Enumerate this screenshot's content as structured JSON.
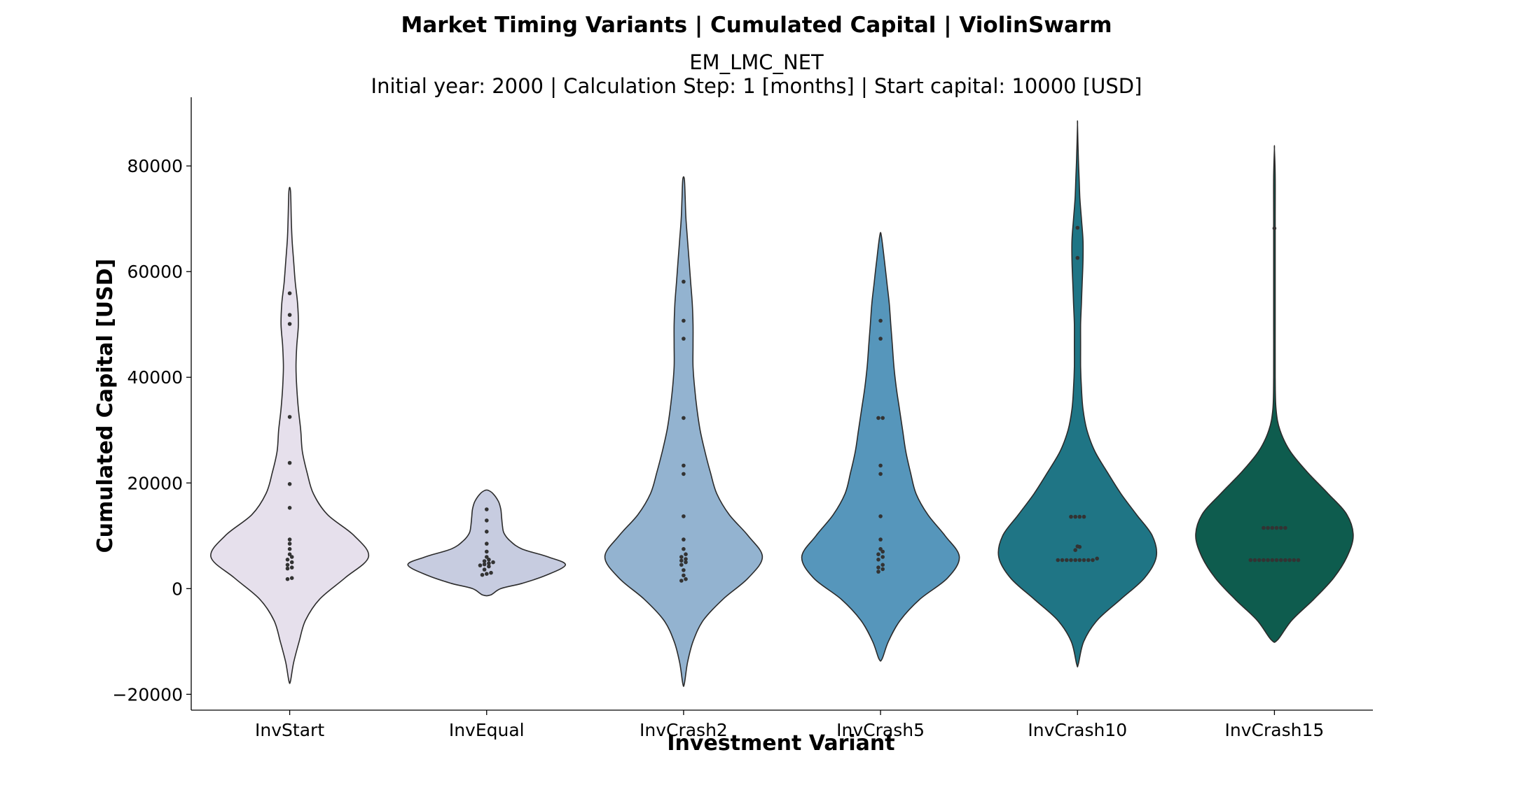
{
  "header": {
    "title": "Market Timing Variants | Cumulated Capital | ViolinSwarm",
    "subtitle_line1": "EM_LMC_NET",
    "subtitle_line2": "Initial year: 2000 | Calculation Step: 1 [months] | Start capital: 10000 [USD]"
  },
  "chart_data": {
    "type": "violin",
    "xlabel": "Investment Variant",
    "ylabel": "Cumulated Capital [USD]",
    "ylim": [
      -23000,
      93000
    ],
    "yticks": [
      -20000,
      0,
      20000,
      40000,
      60000,
      80000
    ],
    "ytick_labels": [
      "−20000",
      "0",
      "20000",
      "40000",
      "60000",
      "80000"
    ],
    "grid": false,
    "categories": [
      "InvStart",
      "InvEqual",
      "InvCrash2",
      "InvCrash5",
      "InvCrash10",
      "InvCrash15"
    ],
    "colors": [
      "#e6e0ec",
      "#c7cce0",
      "#93b3d0",
      "#5696bb",
      "#1f7585",
      "#0e5c4e"
    ],
    "series": [
      {
        "category": "InvStart",
        "points": [
          1800,
          2000,
          3800,
          4000,
          4500,
          5000,
          5500,
          6000,
          6500,
          7500,
          8500,
          9300,
          15300,
          19800,
          23800,
          32500,
          50100,
          51800,
          55900
        ],
        "density": [
          [
            -17500,
            0.01
          ],
          [
            -14000,
            0.05
          ],
          [
            -10000,
            0.12
          ],
          [
            -6000,
            0.2
          ],
          [
            -2000,
            0.38
          ],
          [
            2000,
            0.7
          ],
          [
            6000,
            1.0
          ],
          [
            10000,
            0.82
          ],
          [
            14000,
            0.48
          ],
          [
            18000,
            0.3
          ],
          [
            22000,
            0.22
          ],
          [
            26000,
            0.16
          ],
          [
            30000,
            0.14
          ],
          [
            34000,
            0.11
          ],
          [
            38000,
            0.09
          ],
          [
            42000,
            0.08
          ],
          [
            46000,
            0.09
          ],
          [
            50000,
            0.11
          ],
          [
            54000,
            0.1
          ],
          [
            58000,
            0.07
          ],
          [
            62000,
            0.05
          ],
          [
            66000,
            0.03
          ],
          [
            70000,
            0.02
          ],
          [
            75300,
            0.01
          ]
        ]
      },
      {
        "category": "InvEqual",
        "points": [
          2600,
          2800,
          3000,
          3600,
          4200,
          4400,
          4600,
          4800,
          5000,
          5200,
          5500,
          6000,
          7000,
          8500,
          10800,
          12900,
          15000
        ],
        "density": [
          [
            -1200,
            0.05
          ],
          [
            0,
            0.18
          ],
          [
            1000,
            0.45
          ],
          [
            2500,
            0.75
          ],
          [
            4500,
            1.0
          ],
          [
            6000,
            0.78
          ],
          [
            7500,
            0.45
          ],
          [
            9000,
            0.3
          ],
          [
            10500,
            0.22
          ],
          [
            12000,
            0.2
          ],
          [
            13500,
            0.19
          ],
          [
            15000,
            0.18
          ],
          [
            16500,
            0.15
          ],
          [
            18000,
            0.08
          ],
          [
            18600,
            0.02
          ]
        ]
      },
      {
        "category": "InvCrash2",
        "points": [
          1500,
          1800,
          2500,
          3500,
          4500,
          5000,
          5300,
          5600,
          6000,
          6500,
          7500,
          9300,
          13700,
          21700,
          23300,
          32300,
          47300,
          50700,
          58100
        ],
        "density": [
          [
            -18000,
            0.01
          ],
          [
            -14000,
            0.05
          ],
          [
            -10000,
            0.12
          ],
          [
            -6000,
            0.25
          ],
          [
            -2000,
            0.5
          ],
          [
            2000,
            0.82
          ],
          [
            6000,
            1.0
          ],
          [
            10000,
            0.82
          ],
          [
            14000,
            0.58
          ],
          [
            18000,
            0.42
          ],
          [
            22000,
            0.34
          ],
          [
            26000,
            0.27
          ],
          [
            30000,
            0.21
          ],
          [
            34000,
            0.17
          ],
          [
            38000,
            0.14
          ],
          [
            42000,
            0.12
          ],
          [
            46000,
            0.12
          ],
          [
            50000,
            0.12
          ],
          [
            54000,
            0.11
          ],
          [
            58000,
            0.09
          ],
          [
            62000,
            0.07
          ],
          [
            66000,
            0.05
          ],
          [
            70000,
            0.03
          ],
          [
            74000,
            0.02
          ],
          [
            77500,
            0.01
          ]
        ]
      },
      {
        "category": "InvCrash5",
        "points": [
          3200,
          3700,
          4000,
          4500,
          5500,
          6000,
          6500,
          7000,
          7500,
          9300,
          13700,
          21700,
          23300,
          32300,
          32300,
          47300,
          50700
        ],
        "density": [
          [
            -13300,
            0.02
          ],
          [
            -10000,
            0.1
          ],
          [
            -6000,
            0.25
          ],
          [
            -2000,
            0.5
          ],
          [
            2000,
            0.85
          ],
          [
            6000,
            1.0
          ],
          [
            10000,
            0.82
          ],
          [
            14000,
            0.6
          ],
          [
            18000,
            0.45
          ],
          [
            22000,
            0.38
          ],
          [
            26000,
            0.32
          ],
          [
            30000,
            0.28
          ],
          [
            34000,
            0.24
          ],
          [
            38000,
            0.2
          ],
          [
            42000,
            0.17
          ],
          [
            46000,
            0.15
          ],
          [
            50000,
            0.13
          ],
          [
            54000,
            0.11
          ],
          [
            58000,
            0.08
          ],
          [
            62000,
            0.05
          ],
          [
            66800,
            0.01
          ]
        ]
      },
      {
        "category": "InvCrash10",
        "points": [
          5400,
          5400,
          5400,
          5400,
          5400,
          5400,
          5400,
          5400,
          5400,
          5700,
          7300,
          7900,
          8000,
          13600,
          13600,
          13600,
          13600,
          62600,
          68300
        ],
        "density": [
          [
            -14300,
            0.01
          ],
          [
            -10000,
            0.08
          ],
          [
            -6000,
            0.25
          ],
          [
            -2000,
            0.55
          ],
          [
            2000,
            0.85
          ],
          [
            6000,
            1.0
          ],
          [
            10000,
            0.95
          ],
          [
            14000,
            0.75
          ],
          [
            18000,
            0.55
          ],
          [
            22000,
            0.38
          ],
          [
            26000,
            0.22
          ],
          [
            30000,
            0.12
          ],
          [
            34000,
            0.07
          ],
          [
            38000,
            0.05
          ],
          [
            42000,
            0.04
          ],
          [
            46000,
            0.04
          ],
          [
            50000,
            0.04
          ],
          [
            54000,
            0.05
          ],
          [
            58000,
            0.06
          ],
          [
            62000,
            0.07
          ],
          [
            66000,
            0.07
          ],
          [
            70000,
            0.05
          ],
          [
            74000,
            0.03
          ],
          [
            78000,
            0.02
          ],
          [
            82000,
            0.01
          ],
          [
            87800,
            0.0
          ]
        ]
      },
      {
        "category": "InvCrash15",
        "points": [
          5400,
          5400,
          5400,
          5400,
          5400,
          5400,
          5400,
          5400,
          5400,
          5400,
          5400,
          5400,
          11500,
          11500,
          11500,
          11500,
          11500,
          11500,
          68200
        ],
        "density": [
          [
            -9700,
            0.04
          ],
          [
            -6000,
            0.22
          ],
          [
            -2000,
            0.5
          ],
          [
            2000,
            0.75
          ],
          [
            6000,
            0.92
          ],
          [
            10000,
            1.0
          ],
          [
            14000,
            0.92
          ],
          [
            18000,
            0.68
          ],
          [
            22000,
            0.42
          ],
          [
            26000,
            0.2
          ],
          [
            30000,
            0.07
          ],
          [
            34000,
            0.02
          ],
          [
            40000,
            0.01
          ],
          [
            50000,
            0.01
          ],
          [
            60000,
            0.01
          ],
          [
            70000,
            0.01
          ],
          [
            78000,
            0.01
          ],
          [
            83200,
            0.0
          ]
        ]
      }
    ]
  }
}
